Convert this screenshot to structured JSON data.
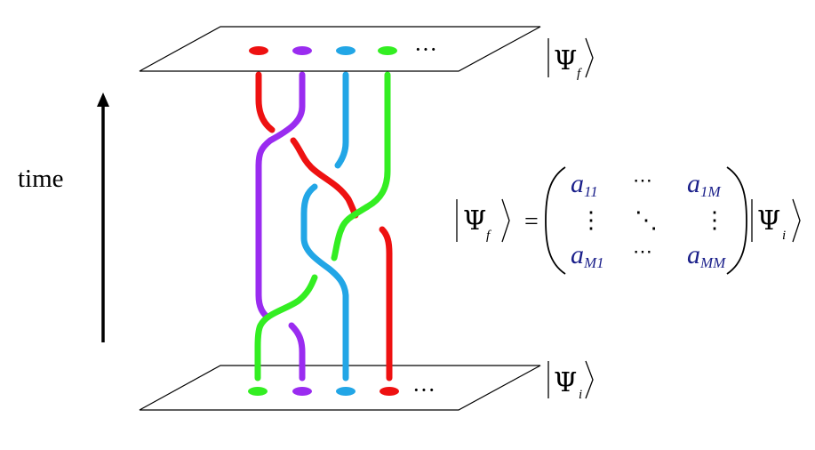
{
  "time_label": "time",
  "top_ket": {
    "symbol": "Ψ",
    "subscript": "f"
  },
  "bottom_ket": {
    "symbol": "Ψ",
    "subscript": "i"
  },
  "equation": {
    "lhs": {
      "symbol": "Ψ",
      "subscript": "f"
    },
    "equals": "=",
    "rhs": {
      "symbol": "Ψ",
      "subscript": "i"
    },
    "matrix": {
      "a11": {
        "base": "a",
        "sub": "11"
      },
      "a1M": {
        "base": "a",
        "sub_num": "1",
        "sub_var": "M"
      },
      "aM1": {
        "base": "a",
        "sub_var": "M",
        "sub_num": "1"
      },
      "aMM": {
        "base": "a",
        "sub_var": "MM"
      },
      "hdots": "⋯",
      "vdots": "⋮",
      "ddots": "⋱"
    }
  },
  "ellipsis_top": "···",
  "ellipsis_bottom": "···",
  "colors": {
    "red": "#ee1111",
    "purple": "#9a2cf0",
    "blue": "#22a6e6",
    "green": "#33ee22",
    "matrix_text": "#1a1f8a"
  }
}
